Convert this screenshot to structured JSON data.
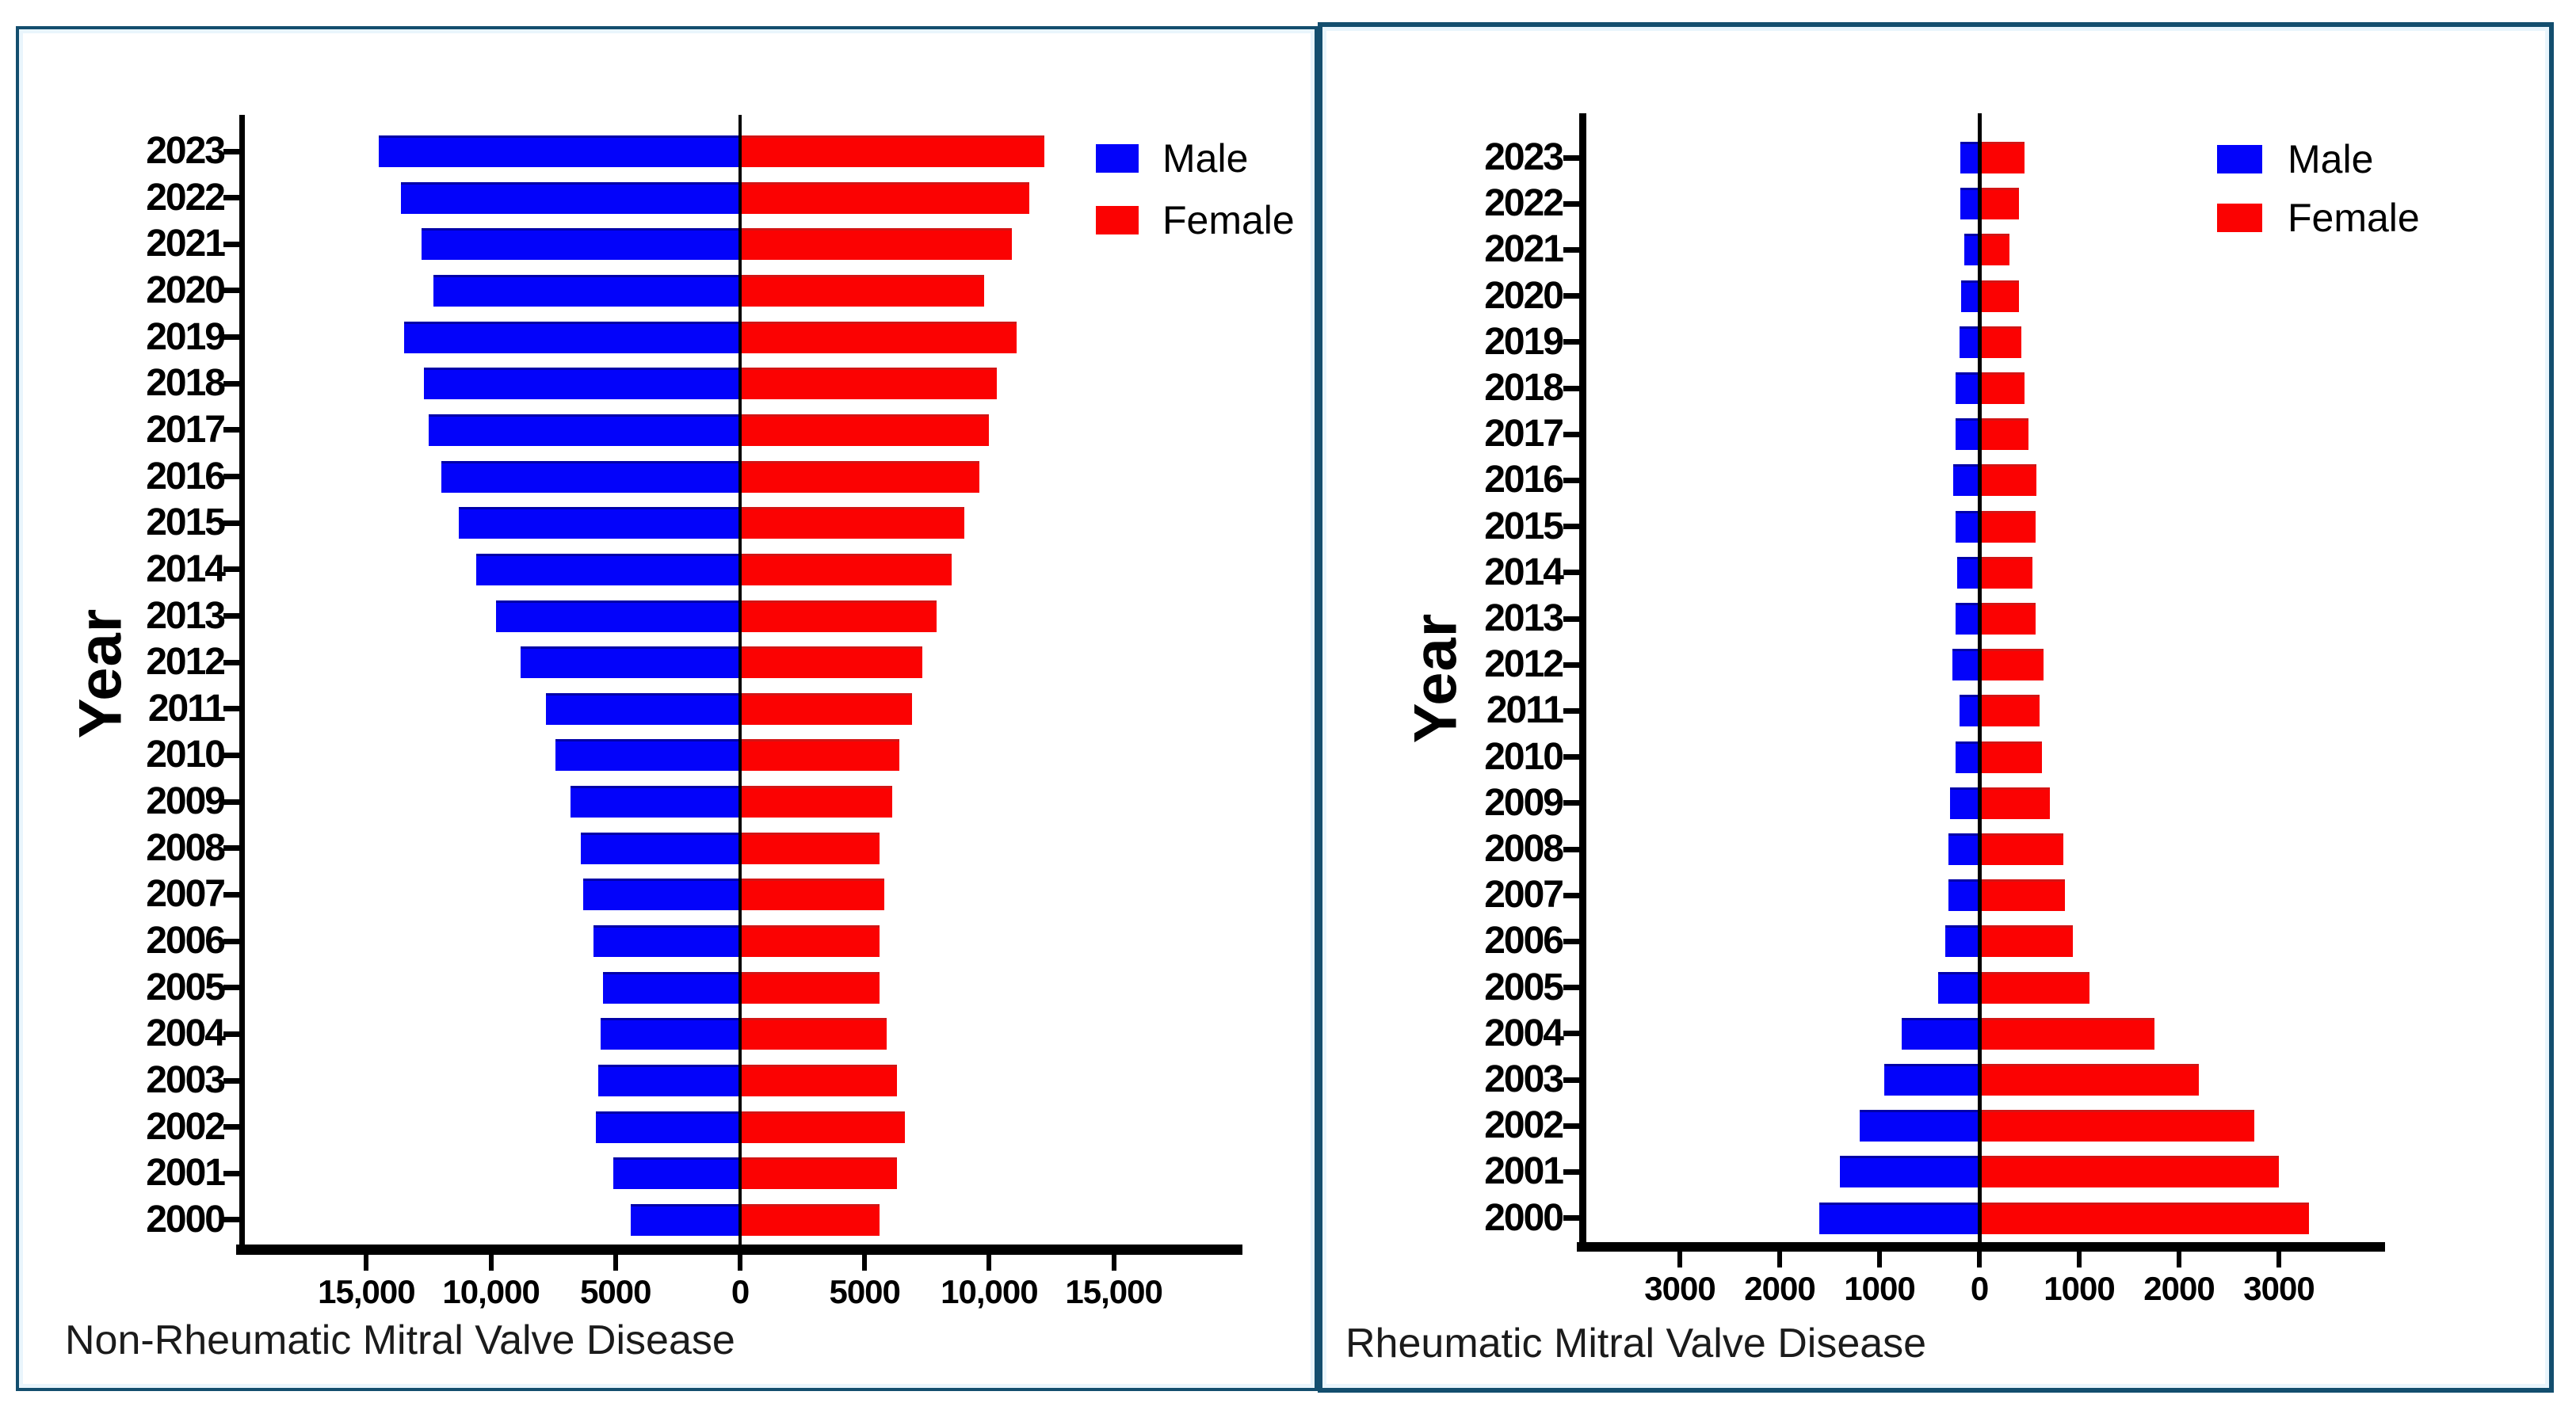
{
  "page": {
    "background": "#ffffff",
    "panel_border_color": "#134e6e",
    "axis_color": "#000000"
  },
  "ui": {
    "ylabel": "Year",
    "legend_male": "Male",
    "legend_female": "Female"
  },
  "chart_data": [
    {
      "type": "bar",
      "subtype": "population-pyramid-horizontal",
      "title": "Non-Rheumatic Mitral Valve Disease",
      "ylabel": "Year",
      "grid": false,
      "legend": {
        "position": "top-right",
        "entries": [
          {
            "label": "Male",
            "color": "#0303fa",
            "side": "left"
          },
          {
            "label": "Female",
            "color": "#fb0202",
            "side": "right"
          }
        ]
      },
      "categories": [
        "2023",
        "2022",
        "2021",
        "2020",
        "2019",
        "2018",
        "2017",
        "2016",
        "2015",
        "2014",
        "2013",
        "2012",
        "2011",
        "2010",
        "2009",
        "2008",
        "2007",
        "2006",
        "2005",
        "2004",
        "2003",
        "2002",
        "2001",
        "2000"
      ],
      "series": [
        {
          "name": "Male",
          "side": "left",
          "color": "#0303fa",
          "values": [
            14500,
            13600,
            12800,
            12300,
            13500,
            12700,
            12500,
            12000,
            11300,
            10600,
            9800,
            8800,
            7800,
            7400,
            6800,
            6400,
            6300,
            5900,
            5500,
            5600,
            5700,
            5800,
            5100,
            4400
          ]
        },
        {
          "name": "Female",
          "side": "right",
          "color": "#fb0202",
          "values": [
            12200,
            11600,
            10900,
            9800,
            11100,
            10300,
            10000,
            9600,
            9000,
            8500,
            7900,
            7300,
            6900,
            6400,
            6100,
            5600,
            5800,
            5600,
            5600,
            5900,
            6300,
            6600,
            6300,
            5600
          ]
        }
      ],
      "x_axis": {
        "tick_labels": [
          "15,000",
          "10,000",
          "5000",
          "0",
          "5000",
          "10,000",
          "15,000"
        ],
        "tick_values": [
          -15000,
          -10000,
          -5000,
          0,
          5000,
          10000,
          15000
        ],
        "xlim": [
          -20000,
          20000
        ]
      }
    },
    {
      "type": "bar",
      "subtype": "population-pyramid-horizontal",
      "title": "Rheumatic Mitral Valve Disease",
      "ylabel": "Year",
      "grid": false,
      "legend": {
        "position": "top-right",
        "entries": [
          {
            "label": "Male",
            "color": "#0303fa",
            "side": "left"
          },
          {
            "label": "Female",
            "color": "#fb0202",
            "side": "right"
          }
        ]
      },
      "categories": [
        "2023",
        "2022",
        "2021",
        "2020",
        "2019",
        "2018",
        "2017",
        "2016",
        "2015",
        "2014",
        "2013",
        "2012",
        "2011",
        "2010",
        "2009",
        "2008",
        "2007",
        "2006",
        "2005",
        "2004",
        "2003",
        "2002",
        "2001",
        "2000"
      ],
      "series": [
        {
          "name": "Male",
          "side": "left",
          "color": "#0303fa",
          "values": [
            190,
            190,
            150,
            180,
            200,
            240,
            240,
            260,
            240,
            220,
            240,
            270,
            200,
            240,
            290,
            310,
            310,
            340,
            410,
            780,
            950,
            1200,
            1400,
            1600
          ]
        },
        {
          "name": "Female",
          "side": "right",
          "color": "#fb0202",
          "values": [
            450,
            400,
            300,
            400,
            420,
            450,
            490,
            570,
            560,
            530,
            560,
            640,
            600,
            630,
            710,
            840,
            860,
            940,
            1100,
            1750,
            2200,
            2750,
            3000,
            3300
          ]
        }
      ],
      "x_axis": {
        "tick_labels": [
          "3000",
          "2000",
          "1000",
          "0",
          "1000",
          "2000",
          "3000"
        ],
        "tick_values": [
          -3000,
          -2000,
          -1000,
          0,
          1000,
          2000,
          3000
        ],
        "xlim": [
          -4000,
          4050
        ]
      }
    }
  ]
}
